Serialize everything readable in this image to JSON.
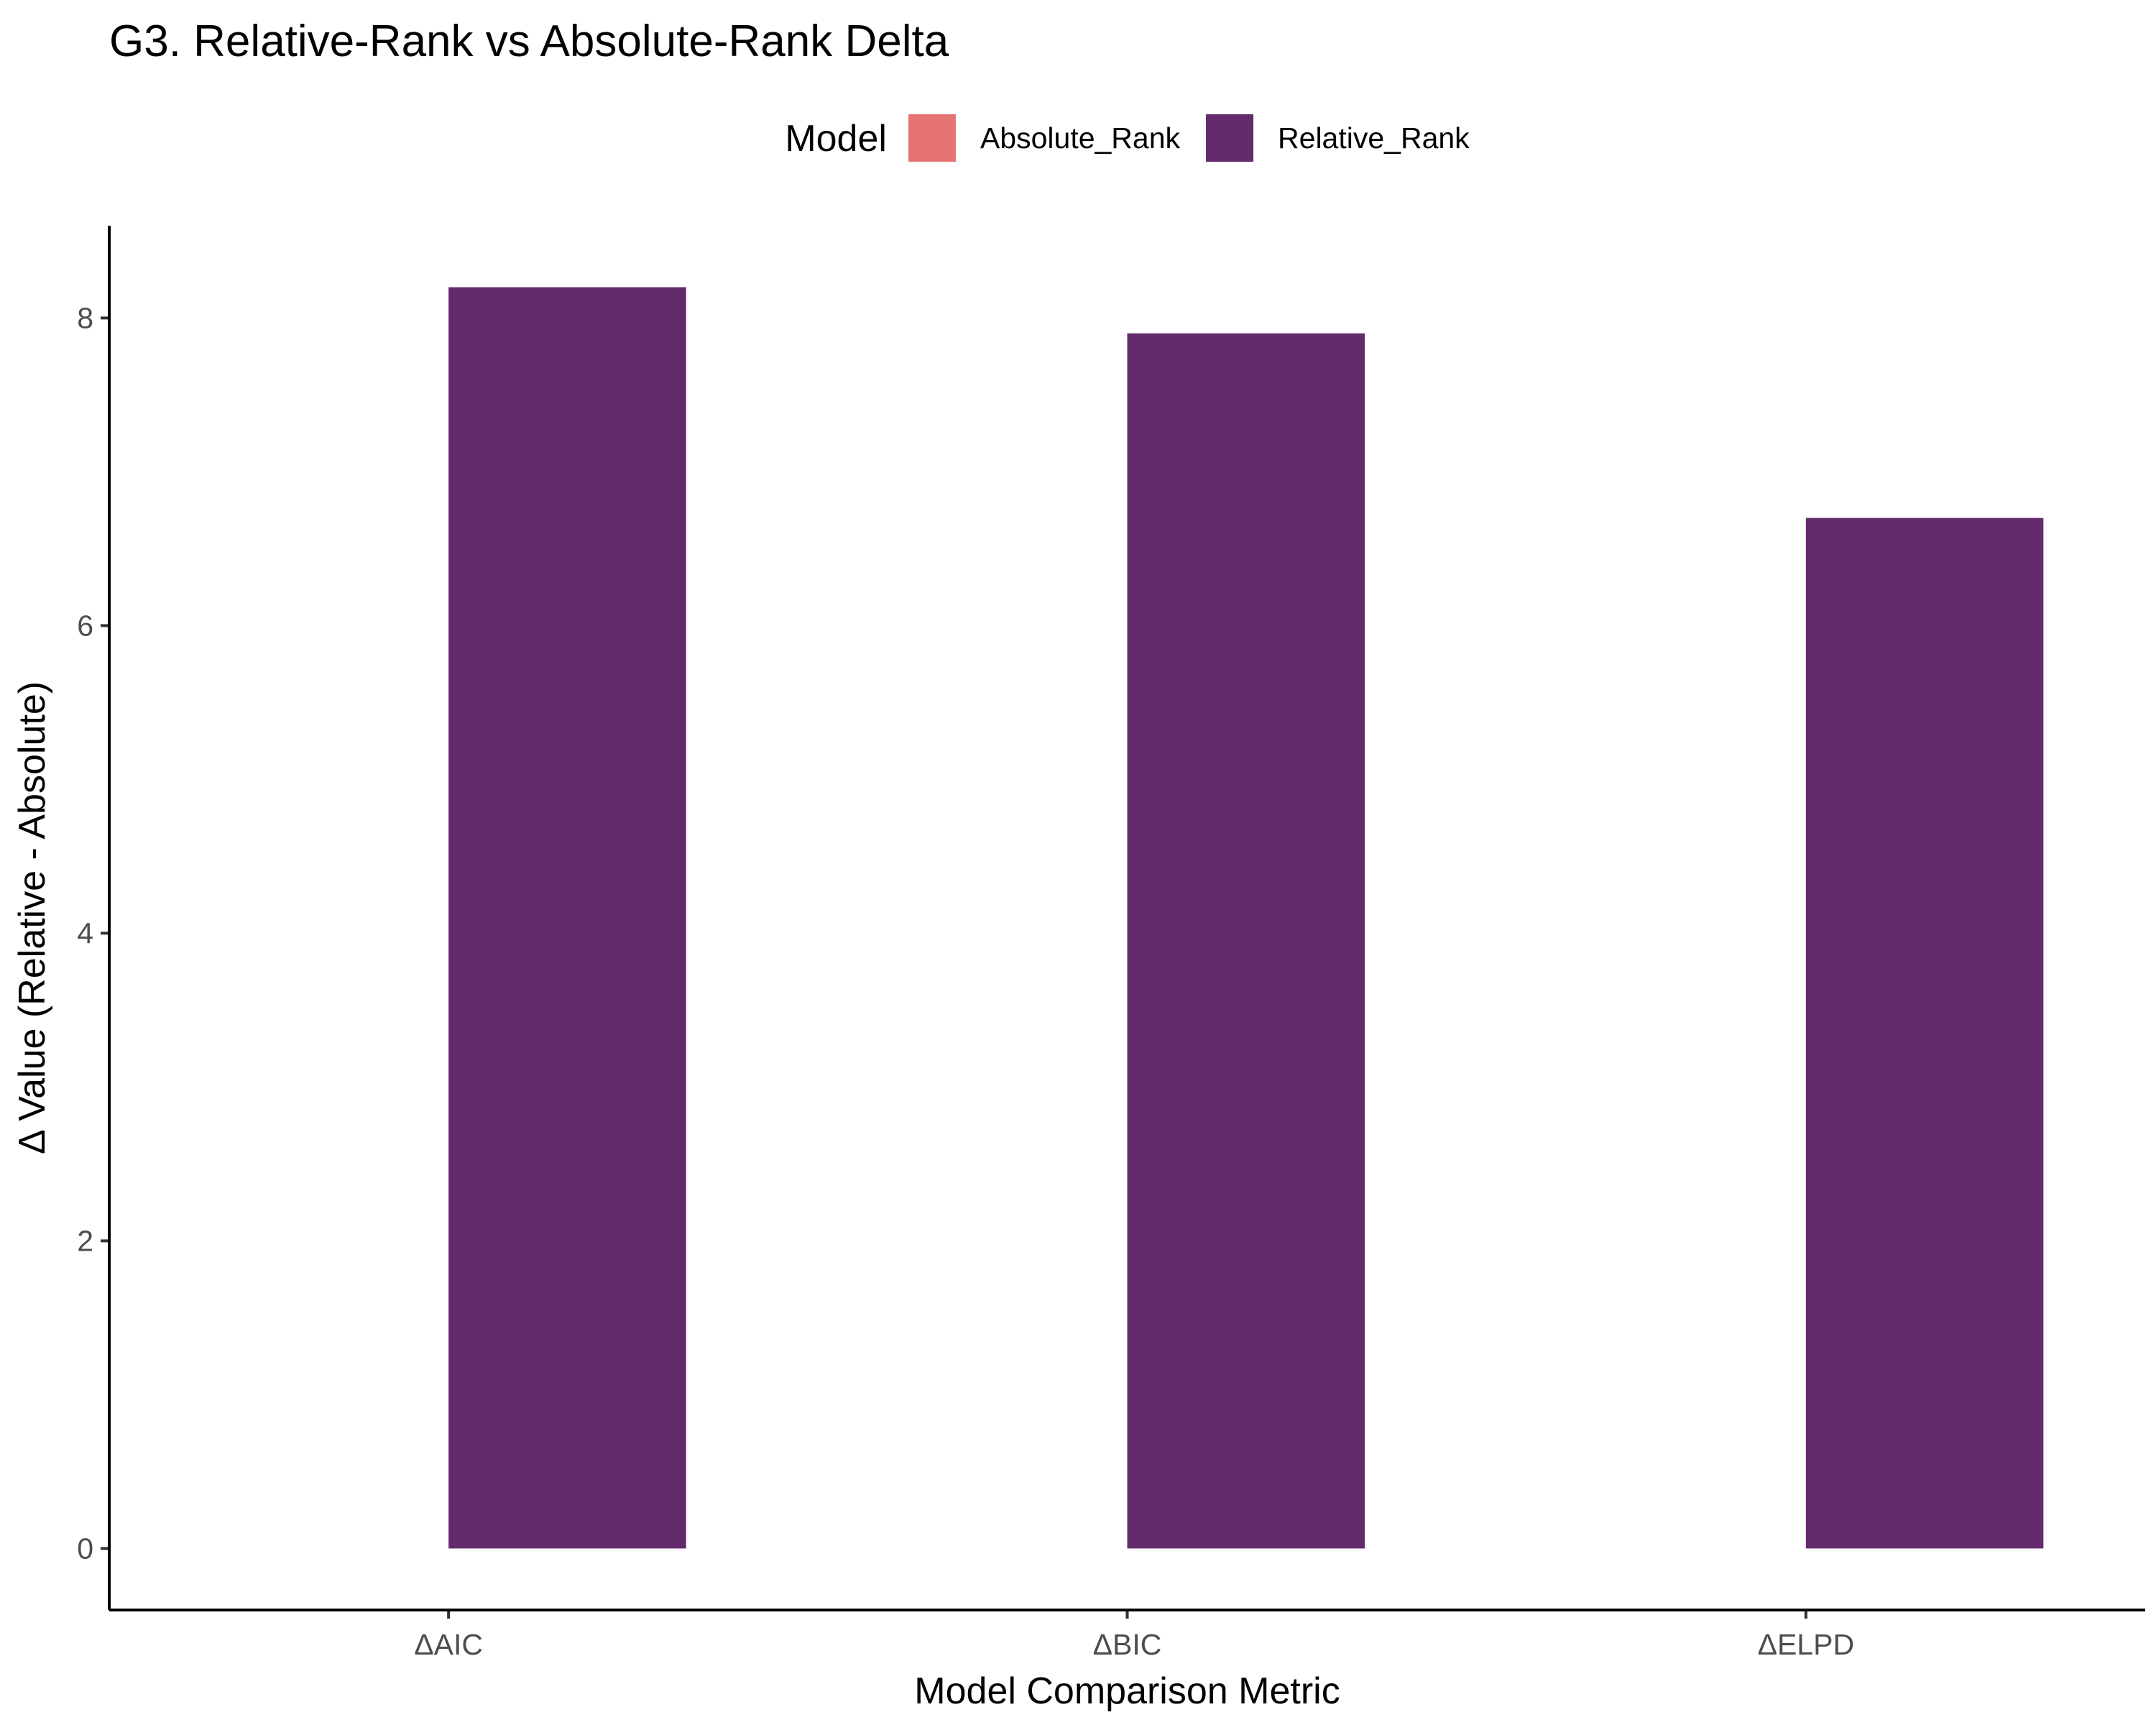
{
  "chart_data": {
    "type": "bar",
    "title": "G3. Relative-Rank vs Absolute-Rank Delta",
    "xlabel": "Model Comparison Metric",
    "ylabel": "Δ Value (Relative - Absolute)",
    "categories": [
      "ΔAIC",
      "ΔBIC",
      "ΔELPD"
    ],
    "series": [
      {
        "name": "Absolute_Rank",
        "values": [
          0,
          0,
          0
        ],
        "color": "#E57373"
      },
      {
        "name": "Relative_Rank",
        "values": [
          8.2,
          7.9,
          6.7
        ],
        "color": "#632B6C"
      }
    ],
    "ylim": [
      -0.4,
      8.6
    ],
    "yticks": [
      0,
      2,
      4,
      6,
      8
    ],
    "legend": {
      "title": "Model",
      "position": "top"
    },
    "grid": false
  }
}
